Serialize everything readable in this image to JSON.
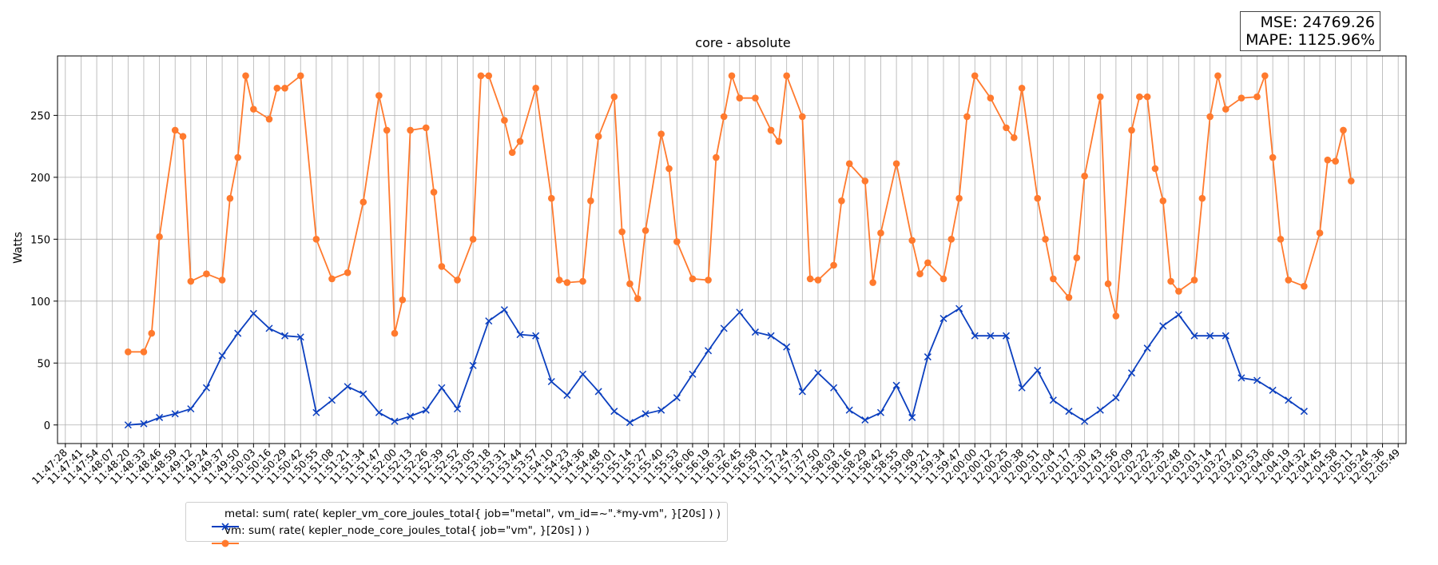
{
  "metrics": {
    "mse": "MSE: 24769.26",
    "mape": "MAPE: 1125.96%"
  },
  "legend": [
    {
      "label": "metal: sum( rate( kepler_vm_core_joules_total{ job=\"metal\", vm_id=~\".*my-vm\", }[20s] ) )",
      "color": "#0b3fbf",
      "marker": "x"
    },
    {
      "label": "vm: sum( rate( kepler_node_core_joules_total{ job=\"vm\", }[20s] ) )",
      "color": "#ff7a2e",
      "marker": "o"
    }
  ],
  "chart_data": {
    "type": "line",
    "title": "core - absolute",
    "xlabel": "",
    "ylabel": "Watts",
    "ylim": [
      -15,
      298
    ],
    "yticks": [
      0,
      50,
      100,
      150,
      200,
      250
    ],
    "grid": true,
    "legend_position": "below-left",
    "x_tick_labels": [
      "11:47:28",
      "11:47:41",
      "11:47:54",
      "11:48:07",
      "11:48:20",
      "11:48:33",
      "11:48:46",
      "11:48:59",
      "11:49:12",
      "11:49:24",
      "11:49:37",
      "11:49:50",
      "11:50:03",
      "11:50:16",
      "11:50:29",
      "11:50:42",
      "11:50:55",
      "11:51:08",
      "11:51:21",
      "11:51:34",
      "11:51:47",
      "11:52:00",
      "11:52:13",
      "11:52:26",
      "11:52:39",
      "11:52:52",
      "11:53:05",
      "11:53:18",
      "11:53:31",
      "11:53:44",
      "11:53:57",
      "11:54:10",
      "11:54:23",
      "11:54:36",
      "11:54:48",
      "11:55:01",
      "11:55:14",
      "11:55:27",
      "11:55:40",
      "11:55:53",
      "11:56:06",
      "11:56:19",
      "11:56:32",
      "11:56:45",
      "11:56:58",
      "11:57:11",
      "11:57:24",
      "11:57:37",
      "11:57:50",
      "11:58:03",
      "11:58:16",
      "11:58:29",
      "11:58:42",
      "11:58:55",
      "11:59:08",
      "11:59:21",
      "11:59:34",
      "11:59:47",
      "12:00:00",
      "12:00:12",
      "12:00:25",
      "12:00:38",
      "12:00:51",
      "12:01:04",
      "12:01:17",
      "12:01:30",
      "12:01:43",
      "12:01:56",
      "12:02:09",
      "12:02:22",
      "12:02:35",
      "12:02:48",
      "12:03:01",
      "12:03:14",
      "12:03:27",
      "12:03:40",
      "12:03:53",
      "12:04:06",
      "12:04:19",
      "12:04:32",
      "12:04:45",
      "12:04:58",
      "12:05:11",
      "12:05:24",
      "12:05:36",
      "12:05:49"
    ],
    "series": [
      {
        "name": "metal: sum( rate( kepler_vm_core_joules_total{ job=\"metal\", vm_id=~\".*my-vm\", }[20s] ) )",
        "color": "#0b3fbf",
        "marker": "x",
        "points": [
          [
            4,
            0
          ],
          [
            5,
            1
          ],
          [
            6,
            6
          ],
          [
            7,
            9
          ],
          [
            8,
            13
          ],
          [
            9,
            30
          ],
          [
            10,
            56
          ],
          [
            11,
            74
          ],
          [
            12,
            90
          ],
          [
            13,
            78
          ],
          [
            14,
            72
          ],
          [
            15,
            71
          ],
          [
            16,
            10
          ],
          [
            17,
            20
          ],
          [
            18,
            31
          ],
          [
            19,
            25
          ],
          [
            20,
            10
          ],
          [
            21,
            3
          ],
          [
            22,
            7
          ],
          [
            23,
            12
          ],
          [
            24,
            30
          ],
          [
            25,
            13
          ],
          [
            26,
            48
          ],
          [
            27,
            84
          ],
          [
            28,
            93
          ],
          [
            29,
            73
          ],
          [
            30,
            72
          ],
          [
            31,
            35
          ],
          [
            32,
            24
          ],
          [
            33,
            41
          ],
          [
            34,
            27
          ],
          [
            35,
            11
          ],
          [
            36,
            2
          ],
          [
            37,
            9
          ],
          [
            38,
            12
          ],
          [
            39,
            22
          ],
          [
            40,
            41
          ],
          [
            41,
            60
          ],
          [
            42,
            78
          ],
          [
            43,
            91
          ],
          [
            44,
            75
          ],
          [
            45,
            72
          ],
          [
            46,
            63
          ],
          [
            47,
            27
          ],
          [
            48,
            42
          ],
          [
            49,
            30
          ],
          [
            50,
            12
          ],
          [
            51,
            4
          ],
          [
            52,
            10
          ],
          [
            53,
            32
          ],
          [
            54,
            6
          ],
          [
            55,
            55
          ],
          [
            56,
            86
          ],
          [
            57,
            94
          ],
          [
            58,
            72
          ],
          [
            59,
            72
          ],
          [
            60,
            72
          ],
          [
            61,
            30
          ],
          [
            62,
            44
          ],
          [
            63,
            20
          ],
          [
            64,
            11
          ],
          [
            65,
            3
          ],
          [
            66,
            12
          ],
          [
            67,
            22
          ],
          [
            68,
            42
          ],
          [
            69,
            62
          ],
          [
            70,
            80
          ],
          [
            71,
            89
          ],
          [
            72,
            72
          ],
          [
            73,
            72
          ],
          [
            74,
            72
          ],
          [
            75,
            38
          ],
          [
            76,
            36
          ],
          [
            77,
            28
          ],
          [
            78,
            20
          ],
          [
            79,
            11
          ]
        ]
      },
      {
        "name": "vm: sum( rate( kepler_node_core_joules_total{ job=\"vm\", }[20s] ) )",
        "color": "#ff7a2e",
        "marker": "o",
        "points": [
          [
            4,
            59
          ],
          [
            5,
            59
          ],
          [
            5.5,
            74
          ],
          [
            6,
            152
          ],
          [
            7,
            238
          ],
          [
            7.5,
            233
          ],
          [
            8,
            116
          ],
          [
            9,
            122
          ],
          [
            10,
            117
          ],
          [
            10.5,
            183
          ],
          [
            11,
            216
          ],
          [
            11.5,
            282
          ],
          [
            12,
            255
          ],
          [
            13,
            247
          ],
          [
            13.5,
            272
          ],
          [
            14,
            272
          ],
          [
            15,
            282
          ],
          [
            16,
            150
          ],
          [
            17,
            118
          ],
          [
            18,
            123
          ],
          [
            19,
            180
          ],
          [
            20,
            266
          ],
          [
            20.5,
            238
          ],
          [
            21,
            74
          ],
          [
            21.5,
            101
          ],
          [
            22,
            238
          ],
          [
            23,
            240
          ],
          [
            23.5,
            188
          ],
          [
            24,
            128
          ],
          [
            25,
            117
          ],
          [
            26,
            150
          ],
          [
            26.5,
            282
          ],
          [
            27,
            282
          ],
          [
            28,
            246
          ],
          [
            28.5,
            220
          ],
          [
            29,
            229
          ],
          [
            30,
            272
          ],
          [
            31,
            183
          ],
          [
            31.5,
            117
          ],
          [
            32,
            115
          ],
          [
            33,
            116
          ],
          [
            33.5,
            181
          ],
          [
            34,
            233
          ],
          [
            35,
            265
          ],
          [
            35.5,
            156
          ],
          [
            36,
            114
          ],
          [
            36.5,
            102
          ],
          [
            37,
            157
          ],
          [
            38,
            235
          ],
          [
            38.5,
            207
          ],
          [
            39,
            148
          ],
          [
            40,
            118
          ],
          [
            41,
            117
          ],
          [
            41.5,
            216
          ],
          [
            42,
            249
          ],
          [
            42.5,
            282
          ],
          [
            43,
            264
          ],
          [
            44,
            264
          ],
          [
            45,
            238
          ],
          [
            45.5,
            229
          ],
          [
            46,
            282
          ],
          [
            47,
            249
          ],
          [
            47.5,
            118
          ],
          [
            48,
            117
          ],
          [
            49,
            129
          ],
          [
            49.5,
            181
          ],
          [
            50,
            211
          ],
          [
            51,
            197
          ],
          [
            51.5,
            115
          ],
          [
            52,
            155
          ],
          [
            53,
            211
          ],
          [
            54,
            149
          ],
          [
            54.5,
            122
          ],
          [
            55,
            131
          ],
          [
            56,
            118
          ],
          [
            56.5,
            150
          ],
          [
            57,
            183
          ],
          [
            57.5,
            249
          ],
          [
            58,
            282
          ],
          [
            59,
            264
          ],
          [
            60,
            240
          ],
          [
            60.5,
            232
          ],
          [
            61,
            272
          ],
          [
            62,
            183
          ],
          [
            62.5,
            150
          ],
          [
            63,
            118
          ],
          [
            64,
            103
          ],
          [
            64.5,
            135
          ],
          [
            65,
            201
          ],
          [
            66,
            265
          ],
          [
            66.5,
            114
          ],
          [
            67,
            88
          ],
          [
            68,
            238
          ],
          [
            68.5,
            265
          ],
          [
            69,
            265
          ],
          [
            69.5,
            207
          ],
          [
            70,
            181
          ],
          [
            70.5,
            116
          ],
          [
            71,
            108
          ],
          [
            72,
            117
          ],
          [
            72.5,
            183
          ],
          [
            73,
            249
          ],
          [
            73.5,
            282
          ],
          [
            74,
            255
          ],
          [
            75,
            264
          ],
          [
            76,
            265
          ],
          [
            76.5,
            282
          ],
          [
            77,
            216
          ],
          [
            77.5,
            150
          ],
          [
            78,
            117
          ],
          [
            79,
            112
          ],
          [
            80,
            155
          ],
          [
            80.5,
            214
          ],
          [
            81,
            213
          ],
          [
            81.5,
            238
          ],
          [
            82,
            197
          ]
        ]
      }
    ]
  }
}
